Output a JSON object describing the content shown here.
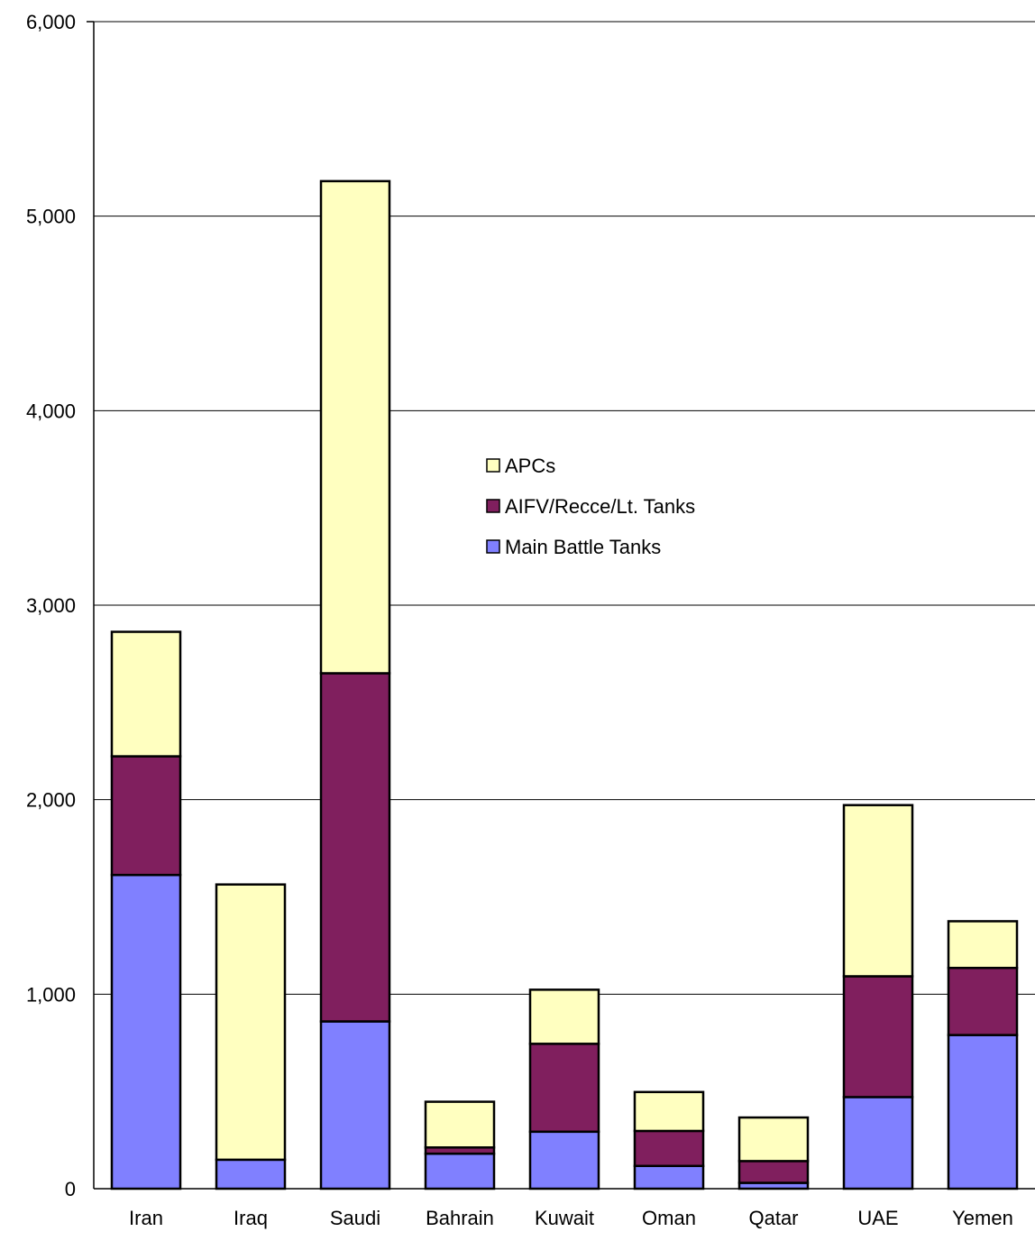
{
  "chart_data": {
    "type": "bar",
    "stacked": true,
    "title": "",
    "xlabel": "",
    "ylabel": "",
    "categories": [
      "Iran",
      "Iraq",
      "Saudi",
      "Bahrain",
      "Kuwait",
      "Oman",
      "Qatar",
      "UAE",
      "Yemen"
    ],
    "series": [
      {
        "name": "Main Battle Tanks",
        "color": "#8080ff",
        "values": [
          1613,
          149,
          860,
          180,
          293,
          117,
          30,
          471,
          790
        ]
      },
      {
        "name": "AIFV/Recce/Lt. Tanks",
        "color": "#801f5e",
        "values": [
          610,
          0,
          1790,
          32,
          452,
          180,
          112,
          621,
          345
        ]
      },
      {
        "name": "APCs",
        "color": "#ffffc0",
        "values": [
          640,
          1415,
          2530,
          235,
          278,
          200,
          224,
          880,
          240
        ]
      }
    ],
    "ylim": [
      0,
      6000
    ],
    "yticks": [
      0,
      1000,
      2000,
      3000,
      4000,
      5000,
      6000
    ],
    "ytick_labels": [
      "0",
      "1,000",
      "2,000",
      "3,000",
      "4,000",
      "5,000",
      "6,000"
    ],
    "grid": true,
    "legend": {
      "placement": "center",
      "entries": [
        "APCs",
        "AIFV/Recce/Lt. Tanks",
        "Main Battle Tanks"
      ]
    }
  }
}
